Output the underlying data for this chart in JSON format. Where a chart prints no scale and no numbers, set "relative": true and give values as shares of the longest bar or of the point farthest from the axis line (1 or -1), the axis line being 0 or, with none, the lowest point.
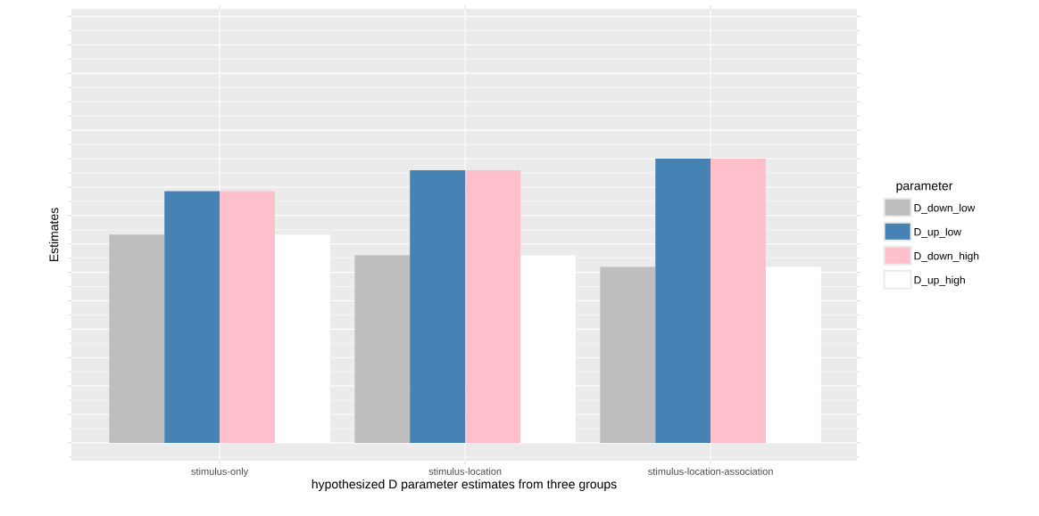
{
  "chart_data": {
    "type": "bar",
    "relative": true,
    "xlabel": "hypothesized D parameter estimates from three groups",
    "ylabel": "Estimates",
    "legend_title": "parameter",
    "legend": "right",
    "grid": true,
    "categories": [
      "stimulus-only",
      "stimulus-location",
      "stimulus-location-association"
    ],
    "series": [
      {
        "name": "D_down_low",
        "color": "#bebebe",
        "values": [
          0.733,
          0.66,
          0.619
        ]
      },
      {
        "name": "D_up_low",
        "color": "#4682b4",
        "values": [
          0.886,
          0.959,
          1
        ]
      },
      {
        "name": "D_down_high",
        "color": "#ffc0cb",
        "values": [
          0.886,
          0.959,
          1
        ]
      },
      {
        "name": "D_up_high",
        "color": "#ffffff",
        "values": [
          0.733,
          0.66,
          0.619
        ]
      }
    ]
  }
}
